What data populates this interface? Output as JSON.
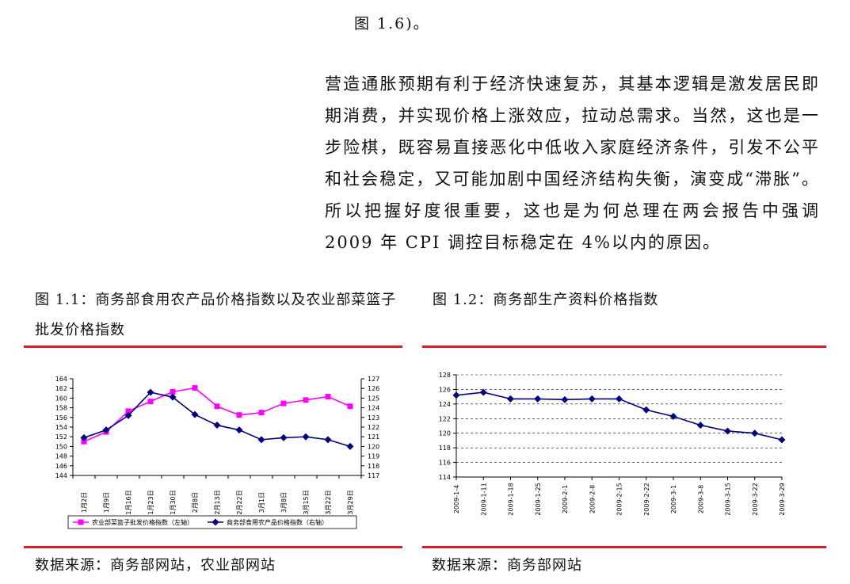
{
  "fig_ref": "图 1.6)。",
  "paragraph": "营造通胀预期有利于经济快速复苏，其基本逻辑是激发居民即期消费，并实现价格上涨效应，拉动总需求。当然，这也是一步险棋，既容易直接恶化中低收入家庭经济条件，引发不公平和社会稳定，又可能加剧中国经济结构失衡，演变成“滞胀”。所以把握好度很重要，这也是为何总理在两会报告中强调 2009 年 CPI 调控目标稳定在 4%以内的原因。",
  "figure_left": {
    "caption": "图 1.1：商务部食用农产品价格指数以及农业部菜篮子批发价格指数",
    "source": "数据来源：商务部网站，农业部网站"
  },
  "figure_right": {
    "caption": "图 1.2：商务部生产资料价格指数",
    "source": "数据来源：商务部网站"
  },
  "colors": {
    "red_rule": "#d61f26",
    "magenta": "#ff00ff",
    "navy": "#000080"
  },
  "chart_data": [
    {
      "type": "line",
      "categories": [
        "1月2日",
        "1月9日",
        "1月16日",
        "1月23日",
        "1月30日",
        "2月8日",
        "2月13日",
        "2月22日",
        "3月1日",
        "3月8日",
        "3月15日",
        "3月22日",
        "3月29日"
      ],
      "left_ylim": [
        144,
        164
      ],
      "left_ticks": [
        144,
        146,
        148,
        150,
        152,
        154,
        156,
        158,
        160,
        162,
        164
      ],
      "right_ylim": [
        117,
        127
      ],
      "right_ticks": [
        117,
        118,
        119,
        120,
        121,
        122,
        123,
        124,
        125,
        126,
        127
      ],
      "series": [
        {
          "name": "农业部菜篮子批发价格指数（左轴）",
          "axis": "left",
          "color": "#ff00ff",
          "marker": "square",
          "values": [
            151.0,
            153.0,
            157.3,
            159.3,
            161.3,
            162.1,
            158.3,
            156.5,
            157.0,
            158.9,
            159.6,
            160.3,
            158.3
          ]
        },
        {
          "name": "商务部食用农产品价格指数（右轴）",
          "axis": "right",
          "color": "#000080",
          "marker": "diamond",
          "values": [
            120.9,
            121.7,
            123.2,
            125.6,
            125.1,
            123.3,
            122.2,
            121.7,
            120.7,
            120.9,
            121.0,
            120.7,
            120.0
          ]
        }
      ],
      "legend": "bottom"
    },
    {
      "type": "line",
      "categories": [
        "2009-1-4",
        "2009-1-11",
        "2009-1-18",
        "2009-1-25",
        "2009-2-1",
        "2009-2-8",
        "2009-2-15",
        "2009-2-22",
        "2009-3-1",
        "2009-3-8",
        "2009-3-15",
        "2009-3-22",
        "2009-3-29"
      ],
      "ylim": [
        114,
        128
      ],
      "ticks": [
        114,
        116,
        118,
        120,
        122,
        124,
        126,
        128
      ],
      "grid": "dashed",
      "series": [
        {
          "color": "#000080",
          "marker": "diamond",
          "values": [
            125.2,
            125.6,
            124.7,
            124.7,
            124.6,
            124.7,
            124.7,
            123.2,
            122.3,
            121.1,
            120.3,
            120.0,
            119.1
          ]
        }
      ]
    }
  ]
}
